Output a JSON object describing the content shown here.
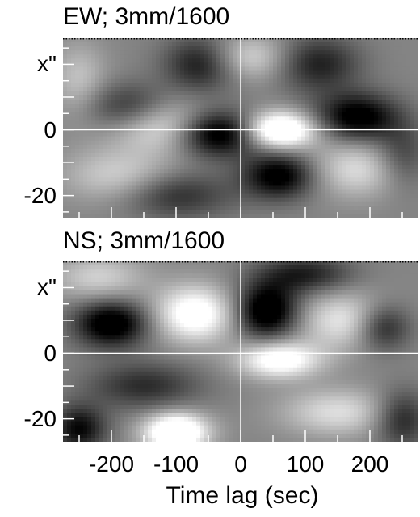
{
  "chart_data": [
    {
      "type": "heatmap",
      "title": "EW; 3mm/1600",
      "xlabel": "",
      "ylabel": "x\"",
      "xlim": [
        -275,
        275
      ],
      "ylim": [
        -27,
        28
      ],
      "xticks": [
        "-200",
        "-100",
        "0",
        "100",
        "200"
      ],
      "yticks": [
        {
          "value": 20,
          "label": "x\""
        },
        {
          "value": 0,
          "label": "0"
        },
        {
          "value": -20,
          "label": "-20"
        }
      ],
      "crosshair": {
        "x": 0,
        "y": 0
      },
      "features": [
        {
          "x": -120,
          "y": 2,
          "amp": 0.45,
          "sx": 55,
          "sy": 6
        },
        {
          "x": -35,
          "y": -1,
          "amp": -0.7,
          "sx": 45,
          "sy": 5
        },
        {
          "x": 60,
          "y": 0,
          "amp": 0.8,
          "sx": 40,
          "sy": 4
        },
        {
          "x": 180,
          "y": 4,
          "amp": -0.6,
          "sx": 45,
          "sy": 5
        },
        {
          "x": 60,
          "y": -14,
          "amp": -0.6,
          "sx": 40,
          "sy": 5
        },
        {
          "x": -170,
          "y": 7,
          "amp": -0.4,
          "sx": 50,
          "sy": 5
        },
        {
          "x": -60,
          "y": 20,
          "amp": -0.45,
          "sx": 40,
          "sy": 6
        },
        {
          "x": 120,
          "y": 20,
          "amp": -0.4,
          "sx": 45,
          "sy": 6
        },
        {
          "x": 10,
          "y": 22,
          "amp": 0.35,
          "sx": 45,
          "sy": 5
        },
        {
          "x": -190,
          "y": -14,
          "amp": 0.3,
          "sx": 60,
          "sy": 6
        },
        {
          "x": 180,
          "y": -12,
          "amp": 0.35,
          "sx": 55,
          "sy": 6
        },
        {
          "x": -100,
          "y": -20,
          "amp": -0.35,
          "sx": 60,
          "sy": 5
        },
        {
          "x": 250,
          "y": -8,
          "amp": -0.3,
          "sx": 30,
          "sy": 7
        },
        {
          "x": -250,
          "y": 15,
          "amp": 0.25,
          "sx": 30,
          "sy": 8
        }
      ]
    },
    {
      "type": "heatmap",
      "title": "NS; 3mm/1600",
      "xlabel": "Time lag (sec)",
      "ylabel": "x\"",
      "xlim": [
        -275,
        275
      ],
      "ylim": [
        -27,
        28
      ],
      "xticks": [
        "-200",
        "-100",
        "0",
        "100",
        "200"
      ],
      "yticks": [
        {
          "value": 20,
          "label": "x\""
        },
        {
          "value": 0,
          "label": "0"
        },
        {
          "value": -20,
          "label": "-20"
        }
      ],
      "crosshair": {
        "x": 0,
        "y": 0
      },
      "features": [
        {
          "x": -200,
          "y": 9,
          "amp": -0.65,
          "sx": 40,
          "sy": 5
        },
        {
          "x": -70,
          "y": 12,
          "amp": 0.6,
          "sx": 45,
          "sy": 6
        },
        {
          "x": 40,
          "y": 13,
          "amp": -0.7,
          "sx": 35,
          "sy": 6
        },
        {
          "x": 160,
          "y": 10,
          "amp": 0.4,
          "sx": 50,
          "sy": 6
        },
        {
          "x": 220,
          "y": 8,
          "amp": -0.45,
          "sx": 30,
          "sy": 5
        },
        {
          "x": 60,
          "y": -2,
          "amp": 0.6,
          "sx": 45,
          "sy": 4
        },
        {
          "x": -150,
          "y": -10,
          "amp": -0.35,
          "sx": 60,
          "sy": 5
        },
        {
          "x": 150,
          "y": -18,
          "amp": 0.35,
          "sx": 60,
          "sy": 5
        },
        {
          "x": -100,
          "y": -24,
          "amp": 0.8,
          "sx": 35,
          "sy": 4
        },
        {
          "x": -250,
          "y": -23,
          "amp": -0.5,
          "sx": 30,
          "sy": 5
        },
        {
          "x": 250,
          "y": -20,
          "amp": -0.4,
          "sx": 30,
          "sy": 6
        },
        {
          "x": 100,
          "y": 24,
          "amp": -0.4,
          "sx": 50,
          "sy": 4
        },
        {
          "x": -220,
          "y": 23,
          "amp": 0.3,
          "sx": 50,
          "sy": 5
        }
      ]
    }
  ]
}
